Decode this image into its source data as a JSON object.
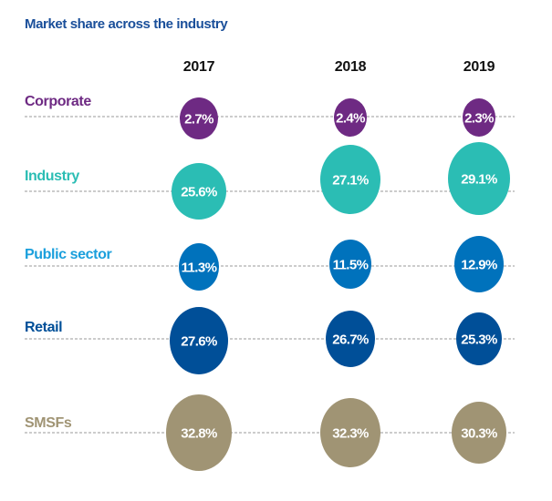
{
  "chart_data": {
    "type": "bubble",
    "title": "Market share across the industry",
    "categories": [
      "2017",
      "2018",
      "2019"
    ],
    "series": [
      {
        "name": "Corporate",
        "values": [
          2.7,
          2.4,
          2.3
        ],
        "labels": [
          "2.7%",
          "2.4%",
          "2.3%"
        ],
        "color": "#6e2a83",
        "label_color": "#6e2a83"
      },
      {
        "name": "Industry",
        "values": [
          25.6,
          27.1,
          29.1
        ],
        "labels": [
          "25.6%",
          "27.1%",
          "29.1%"
        ],
        "color": "#2bbdb4",
        "label_color": "#2bbdb4"
      },
      {
        "name": "Public sector",
        "values": [
          11.3,
          11.5,
          12.9
        ],
        "labels": [
          "11.3%",
          "11.5%",
          "12.9%"
        ],
        "color": "#0072bc",
        "label_color": "#1a9fdc"
      },
      {
        "name": "Retail",
        "values": [
          27.6,
          26.7,
          25.3
        ],
        "labels": [
          "27.6%",
          "26.7%",
          "25.3%"
        ],
        "color": "#004f98",
        "label_color": "#004f98"
      },
      {
        "name": "SMSFs",
        "values": [
          32.8,
          32.3,
          30.3
        ],
        "labels": [
          "32.8%",
          "32.3%",
          "30.3%"
        ],
        "color": "#a09474",
        "label_color": "#a09474"
      }
    ],
    "title_color": "#1a4f9a",
    "line_style": "dashed grey"
  }
}
